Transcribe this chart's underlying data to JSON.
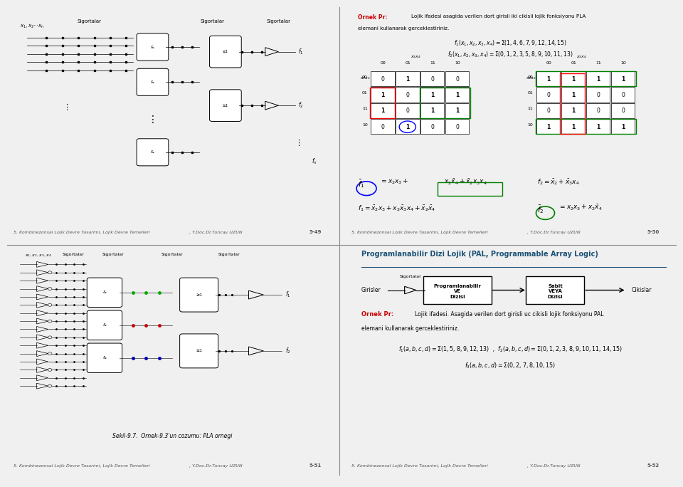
{
  "bg_color": "#f0f0f0",
  "panel_bg": "#ffffff",
  "border_color": "#cccccc",
  "title_color": "#1a5276",
  "text_color": "#000000",
  "red_color": "#cc0000",
  "blue_color": "#0000cc",
  "green_color": "#006600",
  "page_width": 9.6,
  "page_height": 6.84,
  "footer_text": "5. Kombinezonsal Lojik Devre Tasarimi, Lojik Devre Temelleri",
  "footer_right": ", Y.Doc.Dr.Tuncay UZUN",
  "page_numbers": [
    "5-49",
    "5-50",
    "5-51",
    "5-52"
  ]
}
